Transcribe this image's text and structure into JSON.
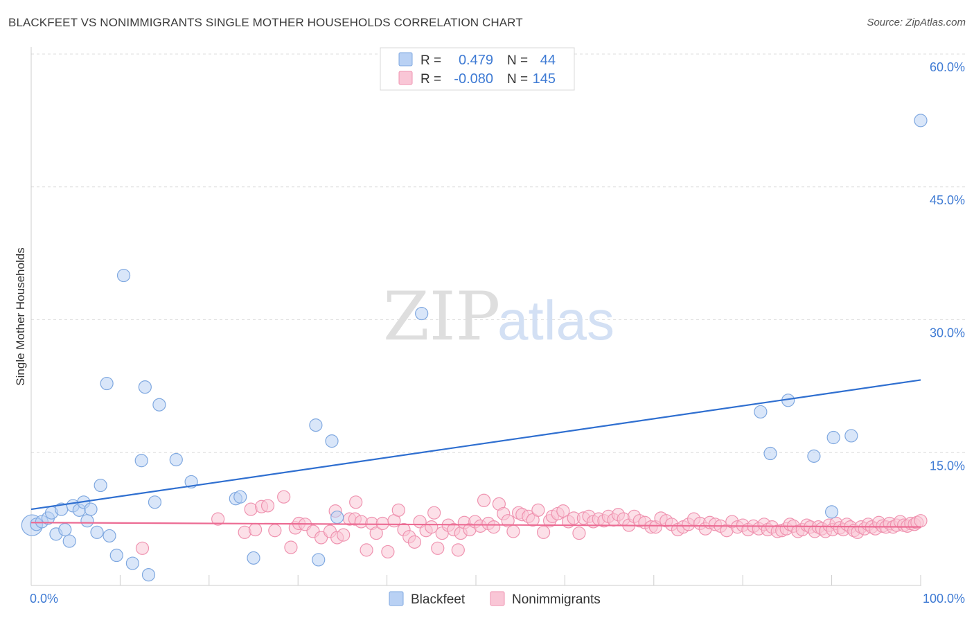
{
  "title": "BLACKFEET VS NONIMMIGRANTS SINGLE MOTHER HOUSEHOLDS CORRELATION CHART",
  "source": "Source: ZipAtlas.com",
  "watermark": {
    "zip": "ZIP",
    "atlas": "atlas"
  },
  "legend_top": {
    "rows": [
      {
        "r_label": "R =",
        "r_value": "0.479",
        "n_label": "N =",
        "n_value": "44",
        "color": "#7fa8e0",
        "fill": "#b9d1f4"
      },
      {
        "r_label": "R =",
        "r_value": "-0.080",
        "n_label": "N =",
        "n_value": "145",
        "color": "#ef93b0",
        "fill": "#f9c6d6"
      }
    ]
  },
  "legend_bottom": [
    {
      "label": "Blackfeet",
      "fill": "#b9d1f4",
      "stroke": "#7fa8e0"
    },
    {
      "label": "Nonimmigrants",
      "fill": "#f9c6d6",
      "stroke": "#ef93b0"
    }
  ],
  "colors": {
    "blackfeet_line": "#2f6fd0",
    "nonimmigrants_line": "#ec6b93",
    "tick_text": "#3f7bd4",
    "grid": "#dcdcdc"
  },
  "chart_data": {
    "type": "scatter",
    "ylabel": "Single Mother Households",
    "xlim": [
      0,
      100
    ],
    "ylim": [
      0,
      60
    ],
    "x_tick_labels": [
      {
        "value": 0,
        "label": "0.0%"
      },
      {
        "value": 100,
        "label": "100.0%"
      }
    ],
    "y_ticks": [
      {
        "value": 15,
        "label": "15.0%"
      },
      {
        "value": 30,
        "label": "30.0%"
      },
      {
        "value": 45,
        "label": "45.0%"
      },
      {
        "value": 60,
        "label": "60.0%"
      }
    ],
    "grid": true,
    "series": [
      {
        "name": "Blackfeet",
        "r": 0.479,
        "n": 44,
        "trend": {
          "x": [
            0,
            100
          ],
          "y": [
            8.6,
            23.2
          ]
        },
        "points": [
          [
            0.1,
            6.8
          ],
          [
            0.6,
            6.9
          ],
          [
            1.2,
            7.2
          ],
          [
            1.9,
            7.6
          ],
          [
            2.3,
            8.2
          ],
          [
            2.8,
            5.8
          ],
          [
            3.4,
            8.6
          ],
          [
            3.8,
            6.3
          ],
          [
            4.3,
            5.0
          ],
          [
            4.7,
            9.0
          ],
          [
            5.4,
            8.5
          ],
          [
            5.9,
            9.4
          ],
          [
            6.3,
            7.3
          ],
          [
            6.7,
            8.6
          ],
          [
            7.4,
            6.0
          ],
          [
            7.8,
            11.3
          ],
          [
            8.5,
            22.8
          ],
          [
            8.8,
            5.6
          ],
          [
            9.6,
            3.4
          ],
          [
            10.4,
            35.0
          ],
          [
            11.4,
            2.5
          ],
          [
            12.4,
            14.1
          ],
          [
            12.8,
            22.4
          ],
          [
            13.2,
            1.2
          ],
          [
            13.9,
            9.4
          ],
          [
            14.4,
            20.4
          ],
          [
            16.3,
            14.2
          ],
          [
            18.0,
            11.7
          ],
          [
            23.0,
            9.8
          ],
          [
            23.5,
            10.0
          ],
          [
            25.0,
            3.1
          ],
          [
            32.0,
            18.1
          ],
          [
            32.3,
            2.9
          ],
          [
            33.8,
            16.3
          ],
          [
            34.4,
            7.7
          ],
          [
            43.9,
            30.7
          ],
          [
            82.0,
            19.6
          ],
          [
            83.1,
            14.9
          ],
          [
            85.1,
            20.9
          ],
          [
            88.0,
            14.6
          ],
          [
            90.0,
            8.3
          ],
          [
            90.2,
            16.7
          ],
          [
            92.2,
            16.9
          ],
          [
            100.0,
            52.5
          ]
        ]
      },
      {
        "name": "Nonimmigrants",
        "r": -0.08,
        "n": 145,
        "trend": {
          "x": [
            0,
            100
          ],
          "y": [
            7.1,
            6.6
          ]
        },
        "points": [
          [
            12.5,
            4.2
          ],
          [
            21.0,
            7.5
          ],
          [
            24.0,
            6.0
          ],
          [
            24.7,
            8.6
          ],
          [
            25.2,
            6.3
          ],
          [
            25.9,
            8.9
          ],
          [
            26.6,
            9.0
          ],
          [
            27.4,
            6.2
          ],
          [
            28.4,
            10.0
          ],
          [
            29.2,
            4.3
          ],
          [
            29.7,
            6.5
          ],
          [
            30.1,
            7.0
          ],
          [
            30.8,
            6.9
          ],
          [
            31.7,
            6.1
          ],
          [
            32.6,
            5.4
          ],
          [
            33.6,
            6.1
          ],
          [
            34.4,
            5.4
          ],
          [
            35.1,
            5.7
          ],
          [
            35.8,
            7.5
          ],
          [
            36.4,
            7.5
          ],
          [
            34.2,
            8.4
          ],
          [
            36.5,
            9.4
          ],
          [
            37.1,
            7.2
          ],
          [
            37.7,
            4.0
          ],
          [
            38.3,
            7.0
          ],
          [
            38.8,
            5.9
          ],
          [
            39.5,
            7.0
          ],
          [
            40.1,
            3.8
          ],
          [
            40.8,
            7.3
          ],
          [
            41.3,
            8.5
          ],
          [
            41.9,
            6.3
          ],
          [
            42.5,
            5.5
          ],
          [
            43.1,
            4.9
          ],
          [
            43.7,
            7.2
          ],
          [
            44.4,
            6.2
          ],
          [
            45.0,
            6.6
          ],
          [
            45.3,
            8.2
          ],
          [
            45.7,
            4.2
          ],
          [
            46.2,
            5.9
          ],
          [
            46.9,
            6.8
          ],
          [
            47.5,
            6.3
          ],
          [
            48.0,
            4.0
          ],
          [
            48.3,
            5.9
          ],
          [
            48.7,
            7.1
          ],
          [
            49.3,
            6.3
          ],
          [
            49.9,
            7.2
          ],
          [
            50.5,
            6.7
          ],
          [
            50.9,
            9.6
          ],
          [
            51.4,
            7.0
          ],
          [
            52.0,
            6.6
          ],
          [
            52.6,
            9.2
          ],
          [
            53.1,
            8.1
          ],
          [
            53.6,
            7.3
          ],
          [
            54.2,
            6.1
          ],
          [
            54.8,
            8.2
          ],
          [
            55.2,
            8.0
          ],
          [
            55.9,
            7.8
          ],
          [
            56.4,
            7.4
          ],
          [
            57.0,
            8.5
          ],
          [
            57.6,
            6.0
          ],
          [
            58.3,
            7.3
          ],
          [
            58.6,
            7.8
          ],
          [
            59.2,
            8.1
          ],
          [
            59.8,
            8.4
          ],
          [
            60.4,
            7.2
          ],
          [
            61.0,
            7.6
          ],
          [
            61.6,
            5.9
          ],
          [
            62.1,
            7.6
          ],
          [
            62.7,
            7.8
          ],
          [
            63.2,
            7.2
          ],
          [
            63.8,
            7.5
          ],
          [
            64.4,
            7.3
          ],
          [
            64.9,
            7.8
          ],
          [
            65.5,
            7.4
          ],
          [
            66.0,
            8.0
          ],
          [
            66.6,
            7.5
          ],
          [
            67.2,
            6.8
          ],
          [
            67.8,
            7.8
          ],
          [
            68.4,
            7.3
          ],
          [
            69.0,
            7.1
          ],
          [
            69.7,
            6.6
          ],
          [
            70.2,
            6.6
          ],
          [
            70.8,
            7.6
          ],
          [
            71.4,
            7.3
          ],
          [
            72.0,
            6.9
          ],
          [
            72.7,
            6.3
          ],
          [
            73.3,
            6.6
          ],
          [
            73.9,
            6.9
          ],
          [
            74.5,
            7.5
          ],
          [
            75.2,
            7.0
          ],
          [
            75.8,
            6.4
          ],
          [
            76.3,
            7.1
          ],
          [
            76.9,
            6.9
          ],
          [
            77.5,
            6.7
          ],
          [
            78.2,
            6.2
          ],
          [
            78.8,
            7.2
          ],
          [
            79.4,
            6.6
          ],
          [
            80.0,
            6.8
          ],
          [
            80.6,
            6.3
          ],
          [
            81.2,
            6.7
          ],
          [
            81.8,
            6.4
          ],
          [
            82.4,
            6.9
          ],
          [
            82.8,
            6.3
          ],
          [
            83.3,
            6.6
          ],
          [
            83.9,
            6.1
          ],
          [
            84.4,
            6.2
          ],
          [
            84.9,
            6.4
          ],
          [
            85.3,
            6.9
          ],
          [
            85.7,
            6.7
          ],
          [
            86.2,
            6.1
          ],
          [
            86.7,
            6.3
          ],
          [
            87.2,
            6.8
          ],
          [
            87.6,
            6.6
          ],
          [
            88.1,
            6.1
          ],
          [
            88.5,
            6.6
          ],
          [
            88.9,
            6.4
          ],
          [
            89.3,
            6.1
          ],
          [
            89.7,
            6.8
          ],
          [
            90.1,
            6.3
          ],
          [
            90.5,
            7.0
          ],
          [
            90.9,
            6.5
          ],
          [
            91.3,
            6.3
          ],
          [
            91.7,
            6.9
          ],
          [
            92.1,
            6.6
          ],
          [
            92.5,
            6.2
          ],
          [
            92.9,
            6.0
          ],
          [
            93.3,
            6.6
          ],
          [
            93.7,
            6.4
          ],
          [
            94.1,
            6.9
          ],
          [
            94.5,
            6.6
          ],
          [
            94.9,
            6.4
          ],
          [
            95.3,
            7.1
          ],
          [
            95.7,
            6.7
          ],
          [
            96.1,
            6.6
          ],
          [
            96.5,
            7.0
          ],
          [
            96.9,
            6.6
          ],
          [
            97.3,
            6.8
          ],
          [
            97.7,
            7.2
          ],
          [
            98.1,
            6.8
          ],
          [
            98.5,
            6.7
          ],
          [
            98.9,
            7.0
          ],
          [
            99.3,
            6.9
          ],
          [
            99.6,
            7.1
          ],
          [
            100.0,
            7.3
          ]
        ]
      }
    ]
  }
}
